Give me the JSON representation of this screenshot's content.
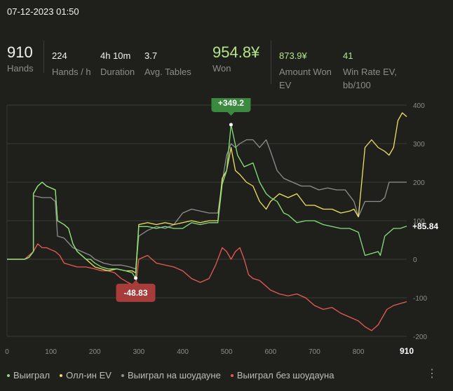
{
  "header": {
    "title": "07-12-2023 01:50"
  },
  "stats": {
    "hands": {
      "value": "910",
      "label": "Hands"
    },
    "hands_per_h": {
      "value": "224",
      "label": "Hands / h"
    },
    "duration": {
      "value": "4h 10m",
      "label": "Duration"
    },
    "avg_tables": {
      "value": "3.7",
      "label": "Avg. Tables"
    },
    "won": {
      "value": "954.8¥",
      "label": "Won"
    },
    "amount_won_ev": {
      "value": "873.9¥",
      "label1": "Amount Won",
      "label2": "EV"
    },
    "win_rate_ev": {
      "value": "41",
      "label1": "Win Rate EV,",
      "label2": "bb/100"
    }
  },
  "legend": {
    "won": "Выиграл",
    "allin_ev": "Олл-ин EV",
    "showdown": "Выиграл на шоудауне",
    "nonshowdown": "Выиграл без шоудауна"
  },
  "colors": {
    "won": "#86e07a",
    "allin_ev": "#ede35f",
    "showdown": "#8f8f8f",
    "nonshowdown": "#e95a53",
    "badge_max": "#3c8a3f",
    "badge_min": "#a83c3a"
  },
  "chart_data": {
    "type": "line",
    "xlabel": "",
    "ylabel": "",
    "xlim": [
      0,
      910
    ],
    "ylim": [
      -200,
      400
    ],
    "x_ticks": [
      "0",
      "100",
      "200",
      "300",
      "400",
      "500",
      "600",
      "700",
      "800"
    ],
    "x_end_label": "910",
    "y_ticks": [
      "400",
      "300",
      "200",
      "100",
      "0",
      "-100",
      "-200"
    ],
    "end_label": "+85.84",
    "annotations": [
      {
        "label": "+349.2",
        "x": 510,
        "y": 349.2
      },
      {
        "label": "-48.83",
        "x": 293,
        "y": -48.83
      }
    ],
    "series": [
      {
        "name": "Выиграл",
        "points": [
          [
            0,
            0
          ],
          [
            40,
            0
          ],
          [
            50,
            5
          ],
          [
            60,
            20
          ],
          [
            60,
            170
          ],
          [
            70,
            190
          ],
          [
            80,
            200
          ],
          [
            90,
            190
          ],
          [
            100,
            185
          ],
          [
            110,
            180
          ],
          [
            115,
            100
          ],
          [
            130,
            90
          ],
          [
            140,
            80
          ],
          [
            150,
            40
          ],
          [
            160,
            20
          ],
          [
            170,
            10
          ],
          [
            180,
            0
          ],
          [
            190,
            0
          ],
          [
            200,
            -10
          ],
          [
            215,
            -20
          ],
          [
            230,
            -25
          ],
          [
            250,
            -25
          ],
          [
            270,
            -30
          ],
          [
            285,
            -35
          ],
          [
            293,
            -48.83
          ],
          [
            300,
            85
          ],
          [
            320,
            85
          ],
          [
            340,
            80
          ],
          [
            360,
            85
          ],
          [
            380,
            80
          ],
          [
            400,
            80
          ],
          [
            420,
            95
          ],
          [
            440,
            90
          ],
          [
            460,
            95
          ],
          [
            480,
            95
          ],
          [
            490,
            195
          ],
          [
            500,
            230
          ],
          [
            510,
            349.2
          ],
          [
            525,
            270
          ],
          [
            540,
            240
          ],
          [
            560,
            250
          ],
          [
            575,
            200
          ],
          [
            590,
            170
          ],
          [
            600,
            160
          ],
          [
            615,
            150
          ],
          [
            630,
            120
          ],
          [
            640,
            115
          ],
          [
            660,
            95
          ],
          [
            680,
            100
          ],
          [
            700,
            100
          ],
          [
            720,
            90
          ],
          [
            740,
            85
          ],
          [
            760,
            80
          ],
          [
            780,
            80
          ],
          [
            800,
            70
          ],
          [
            815,
            10
          ],
          [
            830,
            15
          ],
          [
            845,
            20
          ],
          [
            850,
            10
          ],
          [
            860,
            60
          ],
          [
            870,
            70
          ],
          [
            880,
            80
          ],
          [
            895,
            80
          ],
          [
            910,
            85.84
          ]
        ]
      },
      {
        "name": "Олл-ин EV",
        "points": [
          [
            0,
            0
          ],
          [
            40,
            0
          ],
          [
            50,
            5
          ],
          [
            60,
            20
          ],
          [
            60,
            170
          ],
          [
            70,
            190
          ],
          [
            80,
            200
          ],
          [
            90,
            190
          ],
          [
            100,
            185
          ],
          [
            110,
            180
          ],
          [
            115,
            100
          ],
          [
            130,
            90
          ],
          [
            140,
            80
          ],
          [
            150,
            40
          ],
          [
            160,
            20
          ],
          [
            170,
            10
          ],
          [
            180,
            0
          ],
          [
            190,
            -10
          ],
          [
            200,
            -20
          ],
          [
            215,
            -25
          ],
          [
            230,
            -30
          ],
          [
            250,
            -25
          ],
          [
            270,
            -30
          ],
          [
            285,
            -30
          ],
          [
            293,
            -35
          ],
          [
            300,
            90
          ],
          [
            320,
            95
          ],
          [
            340,
            90
          ],
          [
            360,
            95
          ],
          [
            380,
            90
          ],
          [
            400,
            95
          ],
          [
            420,
            100
          ],
          [
            440,
            95
          ],
          [
            460,
            100
          ],
          [
            480,
            100
          ],
          [
            490,
            210
          ],
          [
            500,
            230
          ],
          [
            510,
            290
          ],
          [
            520,
            230
          ],
          [
            530,
            220
          ],
          [
            545,
            200
          ],
          [
            560,
            190
          ],
          [
            575,
            150
          ],
          [
            590,
            130
          ],
          [
            600,
            150
          ],
          [
            620,
            170
          ],
          [
            640,
            160
          ],
          [
            660,
            170
          ],
          [
            680,
            140
          ],
          [
            700,
            140
          ],
          [
            720,
            130
          ],
          [
            740,
            130
          ],
          [
            760,
            120
          ],
          [
            780,
            125
          ],
          [
            790,
            130
          ],
          [
            800,
            110
          ],
          [
            815,
            290
          ],
          [
            830,
            310
          ],
          [
            845,
            290
          ],
          [
            860,
            280
          ],
          [
            870,
            270
          ],
          [
            880,
            290
          ],
          [
            890,
            360
          ],
          [
            900,
            380
          ],
          [
            910,
            370
          ]
        ]
      },
      {
        "name": "Выиграл на шоудауне",
        "points": [
          [
            0,
            0
          ],
          [
            40,
            0
          ],
          [
            50,
            5
          ],
          [
            60,
            20
          ],
          [
            60,
            165
          ],
          [
            80,
            160
          ],
          [
            100,
            160
          ],
          [
            110,
            150
          ],
          [
            115,
            60
          ],
          [
            130,
            55
          ],
          [
            150,
            30
          ],
          [
            170,
            20
          ],
          [
            190,
            10
          ],
          [
            200,
            0
          ],
          [
            220,
            -10
          ],
          [
            240,
            -15
          ],
          [
            260,
            -15
          ],
          [
            280,
            -20
          ],
          [
            293,
            -25
          ],
          [
            300,
            60
          ],
          [
            320,
            75
          ],
          [
            340,
            85
          ],
          [
            360,
            80
          ],
          [
            380,
            90
          ],
          [
            400,
            120
          ],
          [
            420,
            130
          ],
          [
            440,
            125
          ],
          [
            460,
            120
          ],
          [
            480,
            120
          ],
          [
            490,
            200
          ],
          [
            500,
            270
          ],
          [
            510,
            300
          ],
          [
            520,
            290
          ],
          [
            530,
            300
          ],
          [
            545,
            310
          ],
          [
            560,
            310
          ],
          [
            575,
            290
          ],
          [
            590,
            310
          ],
          [
            600,
            280
          ],
          [
            615,
            230
          ],
          [
            630,
            210
          ],
          [
            650,
            200
          ],
          [
            670,
            190
          ],
          [
            690,
            190
          ],
          [
            710,
            180
          ],
          [
            730,
            185
          ],
          [
            750,
            180
          ],
          [
            770,
            180
          ],
          [
            790,
            150
          ],
          [
            800,
            110
          ],
          [
            815,
            150
          ],
          [
            830,
            150
          ],
          [
            850,
            150
          ],
          [
            860,
            160
          ],
          [
            870,
            200
          ],
          [
            880,
            200
          ],
          [
            910,
            200
          ]
        ]
      },
      {
        "name": "Выиграл без шоудауна",
        "points": [
          [
            0,
            0
          ],
          [
            40,
            0
          ],
          [
            50,
            10
          ],
          [
            60,
            20
          ],
          [
            70,
            40
          ],
          [
            80,
            30
          ],
          [
            90,
            30
          ],
          [
            100,
            25
          ],
          [
            110,
            20
          ],
          [
            120,
            10
          ],
          [
            130,
            -10
          ],
          [
            145,
            -15
          ],
          [
            160,
            -20
          ],
          [
            180,
            -20
          ],
          [
            200,
            -25
          ],
          [
            215,
            -30
          ],
          [
            230,
            -30
          ],
          [
            245,
            -35
          ],
          [
            260,
            -50
          ],
          [
            275,
            -60
          ],
          [
            293,
            -70
          ],
          [
            300,
            0
          ],
          [
            320,
            10
          ],
          [
            340,
            -10
          ],
          [
            360,
            -15
          ],
          [
            380,
            -20
          ],
          [
            400,
            -30
          ],
          [
            420,
            -50
          ],
          [
            440,
            -60
          ],
          [
            460,
            -50
          ],
          [
            475,
            -15
          ],
          [
            490,
            30
          ],
          [
            500,
            20
          ],
          [
            510,
            0
          ],
          [
            520,
            20
          ],
          [
            530,
            30
          ],
          [
            540,
            0
          ],
          [
            550,
            -40
          ],
          [
            560,
            -50
          ],
          [
            575,
            -55
          ],
          [
            590,
            -70
          ],
          [
            600,
            -80
          ],
          [
            620,
            -90
          ],
          [
            640,
            -95
          ],
          [
            660,
            -90
          ],
          [
            680,
            -100
          ],
          [
            700,
            -120
          ],
          [
            720,
            -130
          ],
          [
            740,
            -125
          ],
          [
            760,
            -140
          ],
          [
            780,
            -150
          ],
          [
            800,
            -160
          ],
          [
            815,
            -175
          ],
          [
            830,
            -185
          ],
          [
            845,
            -170
          ],
          [
            855,
            -150
          ],
          [
            865,
            -130
          ],
          [
            880,
            -120
          ],
          [
            895,
            -115
          ],
          [
            910,
            -110
          ]
        ]
      }
    ]
  }
}
